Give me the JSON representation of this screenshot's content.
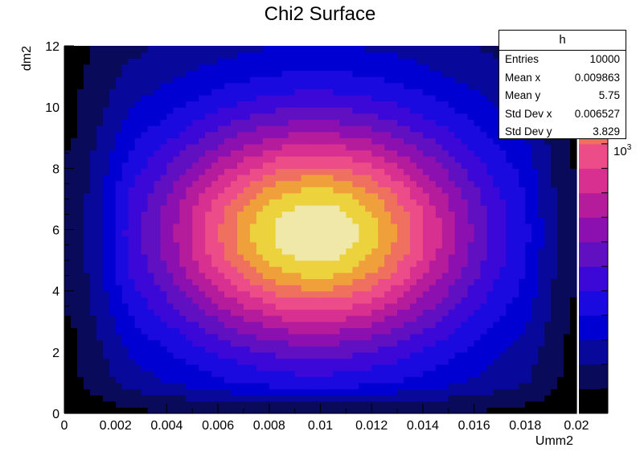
{
  "chart_data": {
    "type": "heatmap",
    "title": "Chi2 Surface",
    "xlabel": "Umm2",
    "ylabel": "dm2",
    "xlim": [
      0,
      0.02
    ],
    "ylim": [
      0,
      12
    ],
    "x_ticks": [
      "0",
      "0.002",
      "0.004",
      "0.006",
      "0.008",
      "0.01",
      "0.012",
      "0.014",
      "0.016",
      "0.018",
      "0.02"
    ],
    "y_ticks": [
      "0",
      "2",
      "4",
      "6",
      "8",
      "10",
      "12"
    ],
    "palette": [
      "#000000",
      "#0a0a5a",
      "#08089a",
      "#0000d2",
      "#1a0ae0",
      "#3c08d8",
      "#6010c0",
      "#8c10b0",
      "#b41c9c",
      "#d83090",
      "#ec4c88",
      "#f07060",
      "#f0a03a",
      "#ecd23c",
      "#f0e8a8"
    ],
    "peak": {
      "x": 0.0098,
      "y": 5.9
    },
    "colorbar": {
      "scale": "log",
      "exponent_label": "10",
      "exponent": "3"
    },
    "grid": false
  },
  "stats": {
    "name": "h",
    "rows": [
      {
        "label": "Entries",
        "value": "10000"
      },
      {
        "label": "Mean x",
        "value": "0.009863"
      },
      {
        "label": "Mean y",
        "value": "5.75"
      },
      {
        "label": "Std Dev x",
        "value": "0.006527"
      },
      {
        "label": "Std Dev y",
        "value": "3.829"
      }
    ]
  }
}
